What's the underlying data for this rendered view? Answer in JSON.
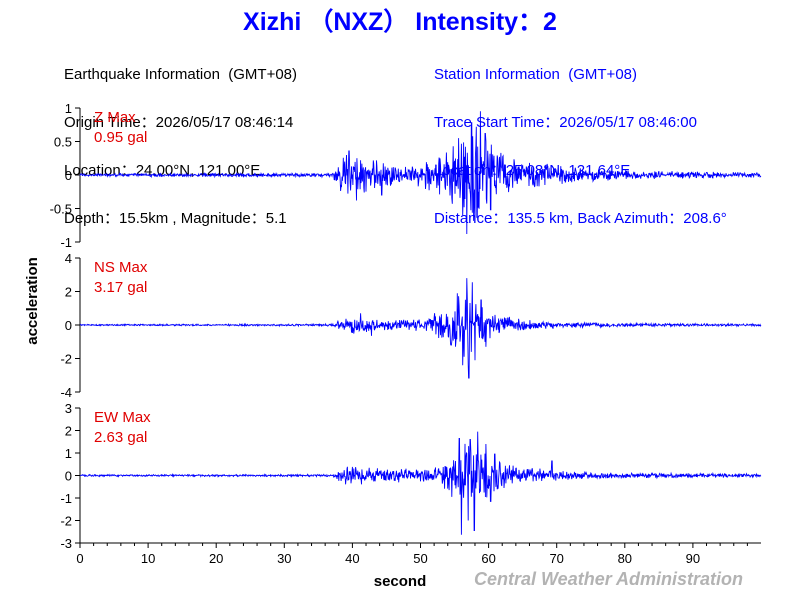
{
  "title": "Xizhi （NXZ） Intensity：2",
  "earthquake_info": {
    "heading": "Earthquake Information  (GMT+08)",
    "origin_time": "Origin Time：2026/05/17 08:46:14",
    "location": "Location：24.00°N, 121.00°E",
    "depth_magnitude": "Depth：15.5km , Magnitude：5.1"
  },
  "station_info": {
    "heading": "Station Information  (GMT+08)",
    "trace_start": "Trace Start Time：2026/05/17 08:46:00",
    "location": "Location：25.08°N, 121.64°E",
    "distance": "Distance：135.5 km, Back Azimuth：208.6°"
  },
  "credit": "Central Weather Administration",
  "chart_data": {
    "type": "line",
    "xlabel": "second",
    "ylabel": "acceleration",
    "xlim": [
      0,
      100
    ],
    "x_ticks": [
      0,
      10,
      20,
      30,
      40,
      50,
      60,
      70,
      80,
      90
    ],
    "line_color": "#0000ff",
    "label_color": "#e00000",
    "panels": [
      {
        "component": "Z",
        "label": "Z Max",
        "max_label": "0.95 gal",
        "max_gal": 0.95,
        "ylim": [
          -1,
          1
        ],
        "y_ticks": [
          -1,
          -0.5,
          0,
          0.5,
          1
        ],
        "y_tick_labels": [
          "-1",
          "-0.5",
          "0",
          "0.5",
          "1"
        ],
        "envelope": [
          [
            0,
            0.02
          ],
          [
            37,
            0.03
          ],
          [
            38,
            0.25
          ],
          [
            39,
            0.34
          ],
          [
            40,
            0.3
          ],
          [
            42,
            0.25
          ],
          [
            45,
            0.18
          ],
          [
            49,
            0.14
          ],
          [
            53,
            0.3
          ],
          [
            55,
            0.48
          ],
          [
            57,
            0.62
          ],
          [
            58,
            0.7
          ],
          [
            59,
            0.58
          ],
          [
            61,
            0.42
          ],
          [
            63,
            0.3
          ],
          [
            66,
            0.2
          ],
          [
            70,
            0.14
          ],
          [
            75,
            0.09
          ],
          [
            80,
            0.07
          ],
          [
            90,
            0.05
          ],
          [
            100,
            0.04
          ]
        ],
        "spikes": [
          [
            56.8,
            -0.88
          ],
          [
            58.8,
            0.95
          ],
          [
            57.5,
            0.78
          ],
          [
            58.2,
            0.72
          ],
          [
            59.5,
            0.62
          ],
          [
            55.6,
            0.55
          ],
          [
            56.2,
            -0.6
          ],
          [
            58.0,
            -0.7
          ],
          [
            60.3,
            -0.52
          ],
          [
            39.5,
            0.36
          ],
          [
            40.6,
            -0.38
          ],
          [
            44.3,
            -0.3
          ]
        ]
      },
      {
        "component": "NS",
        "label": "NS Max",
        "max_label": "3.17 gal",
        "max_gal": 3.17,
        "ylim": [
          -4,
          4
        ],
        "y_ticks": [
          -4,
          -2,
          0,
          2,
          4
        ],
        "y_tick_labels": [
          "-4",
          "-2",
          "0",
          "2",
          "4"
        ],
        "envelope": [
          [
            0,
            0.04
          ],
          [
            37,
            0.06
          ],
          [
            38,
            0.25
          ],
          [
            40,
            0.55
          ],
          [
            42,
            0.45
          ],
          [
            45,
            0.3
          ],
          [
            48,
            0.3
          ],
          [
            51,
            0.5
          ],
          [
            53,
            0.9
          ],
          [
            55,
            1.7
          ],
          [
            57,
            2.3
          ],
          [
            58,
            1.8
          ],
          [
            59,
            1.2
          ],
          [
            61,
            0.7
          ],
          [
            63,
            0.45
          ],
          [
            66,
            0.3
          ],
          [
            70,
            0.2
          ],
          [
            80,
            0.1
          ],
          [
            100,
            0.06
          ]
        ],
        "spikes": [
          [
            57.1,
            -3.17
          ],
          [
            56.8,
            2.8
          ],
          [
            57.6,
            2.55
          ],
          [
            56.2,
            -2.4
          ],
          [
            55.4,
            1.9
          ],
          [
            58.0,
            -2.1
          ],
          [
            58.9,
            1.5
          ],
          [
            59.6,
            -1.3
          ],
          [
            54.5,
            -1.2
          ],
          [
            41.2,
            0.7
          ],
          [
            42.8,
            -0.65
          ]
        ]
      },
      {
        "component": "EW",
        "label": "EW Max",
        "max_label": "2.63 gal",
        "max_gal": 2.63,
        "ylim": [
          -3,
          3
        ],
        "y_ticks": [
          -3,
          -2,
          -1,
          0,
          1,
          2,
          3
        ],
        "y_tick_labels": [
          "-3",
          "-2",
          "-1",
          "0",
          "1",
          "2",
          "3"
        ],
        "envelope": [
          [
            0,
            0.04
          ],
          [
            37,
            0.05
          ],
          [
            38,
            0.25
          ],
          [
            39,
            0.45
          ],
          [
            41,
            0.42
          ],
          [
            43,
            0.35
          ],
          [
            46,
            0.3
          ],
          [
            50,
            0.3
          ],
          [
            53,
            0.55
          ],
          [
            55,
            0.9
          ],
          [
            56,
            1.3
          ],
          [
            57,
            1.5
          ],
          [
            58,
            1.25
          ],
          [
            60,
            0.9
          ],
          [
            62,
            0.6
          ],
          [
            65,
            0.38
          ],
          [
            70,
            0.22
          ],
          [
            80,
            0.12
          ],
          [
            100,
            0.07
          ]
        ],
        "spikes": [
          [
            56.0,
            -2.63
          ],
          [
            57.9,
            -2.45
          ],
          [
            55.7,
            1.65
          ],
          [
            58.4,
            1.95
          ],
          [
            57.3,
            1.6
          ],
          [
            59.6,
            1.4
          ],
          [
            57.0,
            -2.0
          ],
          [
            60.3,
            -1.15
          ],
          [
            60.9,
            0.95
          ],
          [
            54.6,
            -0.95
          ],
          [
            69.3,
            0.65
          ]
        ]
      }
    ]
  }
}
